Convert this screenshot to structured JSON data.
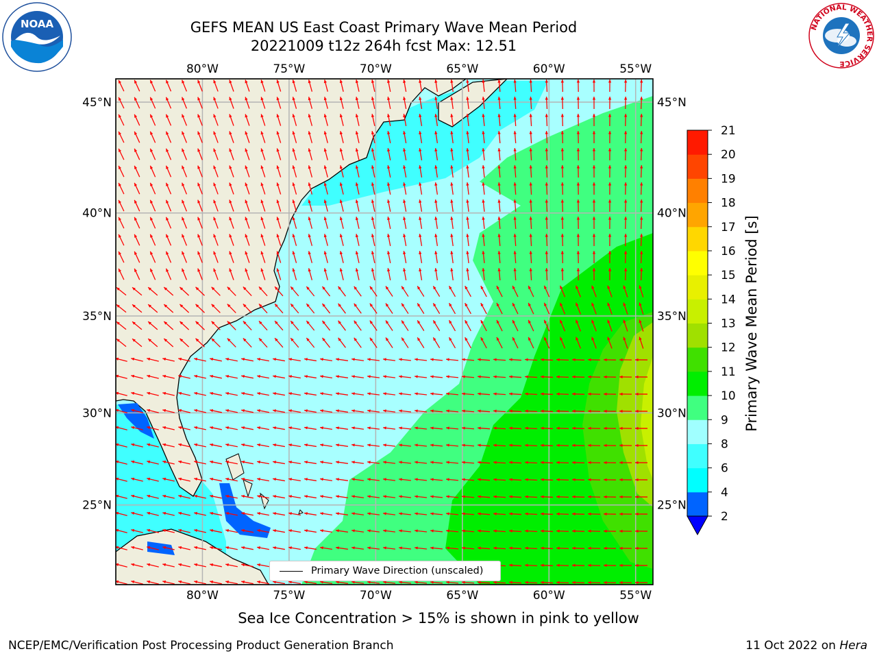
{
  "title": {
    "line1": "GEFS MEAN US East Coast Primary Wave Mean Period",
    "line2": "20221009 t12z 264h fcst   Max: 12.51"
  },
  "map": {
    "lon_range": [
      -85,
      -54
    ],
    "lat_range": [
      20.5,
      46
    ],
    "lon_ticks": [
      -80,
      -75,
      -70,
      -65,
      -60,
      -55
    ],
    "lat_ticks": [
      25,
      30,
      35,
      40,
      45
    ],
    "lon_tick_labels": [
      "80°W",
      "75°W",
      "70°W",
      "65°W",
      "60°W",
      "55°W"
    ],
    "lat_tick_labels": [
      "25°N",
      "30°N",
      "35°N",
      "40°N",
      "45°N"
    ],
    "grid": true,
    "land_color": "#efeedd",
    "arrow_color": "#ff0000"
  },
  "legend": {
    "label": "Primary Wave Direction (unscaled)"
  },
  "colorbar": {
    "label": "Primary Wave Mean Period [s]",
    "ticks": [
      "2",
      "4",
      "6",
      "8",
      "9",
      "10",
      "11",
      "12",
      "13",
      "14",
      "15",
      "16",
      "17",
      "18",
      "19",
      "20",
      "21"
    ],
    "colors": [
      "#0064ff",
      "#00ffff",
      "#40ffff",
      "#a0ffff",
      "#40ff80",
      "#00ee00",
      "#40e000",
      "#a0e000",
      "#c8f000",
      "#e8f000",
      "#ffff00",
      "#ffd700",
      "#ffa500",
      "#ff8000",
      "#ff4500",
      "#ff1a00"
    ],
    "extend_color": "#0000ff"
  },
  "footnote": "Sea Ice Concentration > 15% is shown in pink to yellow",
  "credit": "NCEP/EMC/Verification Post Processing Product Generation Branch",
  "date": {
    "text": "11 Oct 2022 on ",
    "machine": "Hera"
  },
  "logos": {
    "left": "noaa-logo",
    "right": "nws-logo",
    "noaa_text": "NOAA",
    "nws_text": "NATIONAL WEATHER SERVICE"
  }
}
